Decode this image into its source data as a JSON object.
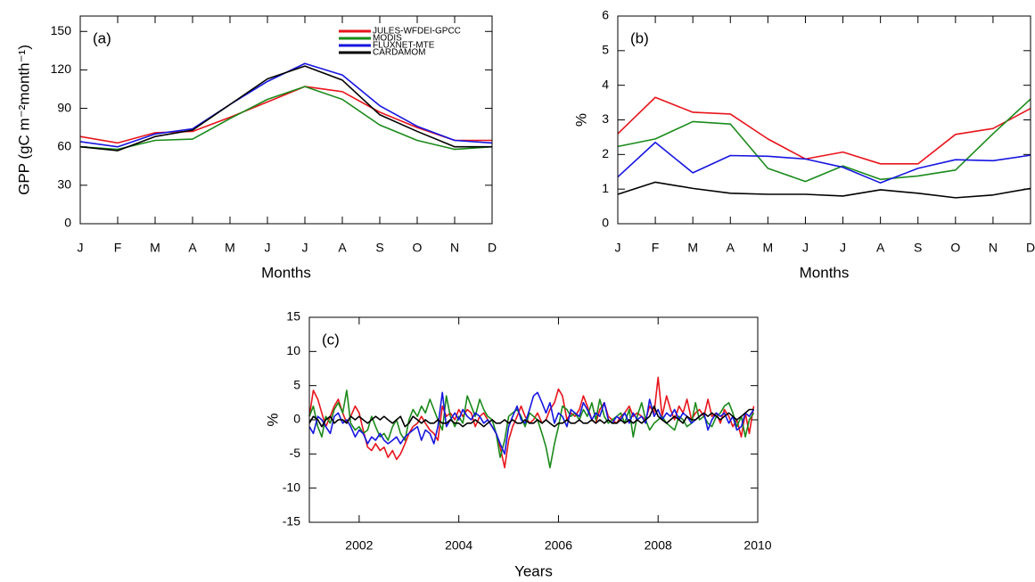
{
  "chart_data": [
    {
      "type": "line",
      "annotation": "(a)",
      "xlabel": "Months",
      "ylabel": "GPP (gC m⁻²month⁻¹)",
      "categories": [
        "J",
        "F",
        "M",
        "A",
        "M",
        "J",
        "J",
        "A",
        "S",
        "O",
        "N",
        "D"
      ],
      "ylim": [
        0,
        162
      ],
      "yticks": [
        0,
        30,
        60,
        90,
        120,
        150
      ],
      "legend": "upper right",
      "series": [
        {
          "name": "JULES-WFDEI-GPCC",
          "color": "#e8141b",
          "values": [
            68,
            63,
            71,
            72,
            83,
            95,
            107,
            103,
            87,
            75,
            65,
            65
          ]
        },
        {
          "name": "MODIS",
          "color": "#1a8a1a",
          "values": [
            60,
            58,
            65,
            66,
            82,
            97,
            107,
            97,
            77,
            65,
            58,
            60
          ]
        },
        {
          "name": "FLUXNET-MTE",
          "color": "#1515e0",
          "values": [
            64,
            60,
            70,
            74,
            93,
            111,
            125,
            116,
            92,
            76,
            65,
            63
          ]
        },
        {
          "name": "CARDAMOM",
          "color": "#000000",
          "values": [
            60,
            57,
            68,
            73,
            93,
            113,
            123,
            112,
            85,
            72,
            60,
            60
          ]
        }
      ]
    },
    {
      "type": "line",
      "annotation": "(b)",
      "xlabel": "Months",
      "ylabel": "%",
      "categories": [
        "J",
        "F",
        "M",
        "A",
        "M",
        "J",
        "J",
        "A",
        "S",
        "O",
        "N",
        "D"
      ],
      "ylim": [
        0,
        6
      ],
      "yticks": [
        0,
        1,
        2,
        3,
        4,
        5,
        6
      ],
      "series": [
        {
          "color": "#e8141b",
          "values": [
            2.6,
            3.65,
            3.22,
            3.17,
            2.45,
            1.87,
            2.07,
            1.73,
            1.73,
            2.58,
            2.75,
            3.33
          ]
        },
        {
          "color": "#1a8a1a",
          "values": [
            2.23,
            2.45,
            2.95,
            2.88,
            1.6,
            1.22,
            1.67,
            1.28,
            1.38,
            1.55,
            2.6,
            3.6
          ]
        },
        {
          "color": "#1515e0",
          "values": [
            1.35,
            2.35,
            1.47,
            1.97,
            1.95,
            1.87,
            1.63,
            1.18,
            1.6,
            1.85,
            1.82,
            1.98
          ]
        },
        {
          "color": "#000000",
          "values": [
            0.85,
            1.2,
            1.02,
            0.88,
            0.85,
            0.85,
            0.8,
            0.98,
            0.88,
            0.75,
            0.83,
            1.02
          ]
        }
      ]
    },
    {
      "type": "line",
      "annotation": "(c)",
      "xlabel": "Years",
      "ylabel": "%",
      "x": [
        2001,
        2001.08,
        2001.17,
        2001.25,
        2001.33,
        2001.42,
        2001.5,
        2001.58,
        2001.67,
        2001.75,
        2001.83,
        2001.92,
        2002,
        2002.08,
        2002.17,
        2002.25,
        2002.33,
        2002.42,
        2002.5,
        2002.58,
        2002.67,
        2002.75,
        2002.83,
        2002.92,
        2003,
        2003.08,
        2003.17,
        2003.25,
        2003.33,
        2003.42,
        2003.5,
        2003.58,
        2003.67,
        2003.75,
        2003.83,
        2003.92,
        2004,
        2004.08,
        2004.17,
        2004.25,
        2004.33,
        2004.42,
        2004.5,
        2004.58,
        2004.67,
        2004.75,
        2004.83,
        2004.92,
        2005,
        2005.08,
        2005.17,
        2005.25,
        2005.33,
        2005.42,
        2005.5,
        2005.58,
        2005.67,
        2005.75,
        2005.83,
        2005.92,
        2006,
        2006.08,
        2006.17,
        2006.25,
        2006.33,
        2006.42,
        2006.5,
        2006.58,
        2006.67,
        2006.75,
        2006.83,
        2006.92,
        2007,
        2007.08,
        2007.17,
        2007.25,
        2007.33,
        2007.42,
        2007.5,
        2007.58,
        2007.67,
        2007.75,
        2007.83,
        2007.92,
        2008,
        2008.08,
        2008.17,
        2008.25,
        2008.33,
        2008.42,
        2008.5,
        2008.58,
        2008.67,
        2008.75,
        2008.83,
        2008.92,
        2009,
        2009.08,
        2009.17,
        2009.25,
        2009.33,
        2009.42,
        2009.5,
        2009.58,
        2009.67,
        2009.75,
        2009.83,
        2009.92
      ],
      "xlim": [
        2001,
        2010
      ],
      "xticks": [
        2002,
        2004,
        2006,
        2008,
        2010
      ],
      "ylim": [
        -15,
        15
      ],
      "yticks": [
        -15,
        -10,
        -5,
        0,
        5,
        10,
        15
      ],
      "series": [
        {
          "color": "#e8141b",
          "values": [
            0.5,
            4.3,
            3.0,
            1.0,
            -1.0,
            0.5,
            2.0,
            3.0,
            1.0,
            -0.5,
            0.5,
            2.0,
            1.0,
            -1.5,
            -4.0,
            -4.5,
            -3.5,
            -4.5,
            -4.0,
            -5.5,
            -4.5,
            -5.8,
            -5.0,
            -3.5,
            -2.0,
            -1.0,
            -0.5,
            0.5,
            -0.5,
            -1.5,
            -2.0,
            -3.0,
            2.0,
            0.5,
            1.0,
            0.0,
            1.5,
            0.5,
            1.5,
            1.0,
            -1.0,
            0.5,
            1.0,
            0.0,
            -1.0,
            -2.0,
            -4.0,
            -7.0,
            -3.0,
            -1.0,
            0.5,
            2.0,
            0.5,
            -0.5,
            0.0,
            1.0,
            -0.5,
            0.0,
            1.5,
            2.5,
            4.5,
            3.5,
            0.0,
            1.0,
            0.5,
            1.5,
            3.5,
            2.0,
            0.0,
            -0.5,
            1.5,
            2.5,
            0.5,
            0.0,
            -0.5,
            0.5,
            1.0,
            2.0,
            0.5,
            1.0,
            0.5,
            0.0,
            2.0,
            1.0,
            6.2,
            0.5,
            3.5,
            1.5,
            0.0,
            2.0,
            1.0,
            3.0,
            0.0,
            1.0,
            1.5,
            0.5,
            3.0,
            0.5,
            1.0,
            -0.5,
            1.5,
            0.5,
            -1.0,
            0.0,
            -2.5,
            1.0,
            -2.0,
            2.0
          ]
        },
        {
          "color": "#1a8a1a",
          "values": [
            0.5,
            2.0,
            -1.0,
            -2.5,
            0.5,
            -0.5,
            1.5,
            2.5,
            1.0,
            4.3,
            -0.5,
            -1.5,
            -1.0,
            -2.0,
            -1.5,
            0.5,
            -1.0,
            -2.5,
            -2.0,
            -3.0,
            -1.0,
            0.0,
            -2.0,
            -3.0,
            0.0,
            1.5,
            0.5,
            2.0,
            1.0,
            3.0,
            1.5,
            0.0,
            -1.5,
            3.5,
            0.5,
            -1.0,
            0.5,
            -0.5,
            3.5,
            2.0,
            0.5,
            3.0,
            1.5,
            0.5,
            0.0,
            -2.0,
            -5.5,
            -3.0,
            0.5,
            1.0,
            1.5,
            0.5,
            -1.0,
            1.0,
            0.5,
            0.0,
            -2.0,
            -4.0,
            -7.0,
            -3.5,
            -1.0,
            2.0,
            1.5,
            0.5,
            1.0,
            0.0,
            1.5,
            0.5,
            2.5,
            0.0,
            3.0,
            0.5,
            -0.5,
            0.0,
            0.5,
            1.0,
            -0.5,
            1.5,
            -2.5,
            0.5,
            2.5,
            0.0,
            -1.5,
            -0.5,
            0.0,
            0.5,
            -0.5,
            -1.0,
            -1.5,
            0.5,
            0.0,
            -1.0,
            -0.5,
            2.5,
            0.0,
            0.5,
            -0.5,
            -1.0,
            0.5,
            1.0,
            2.0,
            2.5,
            1.0,
            -1.0,
            0.5,
            -2.5,
            0.0,
            1.0
          ]
        },
        {
          "color": "#1515e0",
          "values": [
            -1.0,
            -2.0,
            0.5,
            0.0,
            -1.0,
            -2.0,
            0.5,
            1.0,
            -0.5,
            0.0,
            -1.0,
            -2.5,
            -1.5,
            -2.0,
            -3.5,
            -2.5,
            -3.0,
            -2.0,
            -3.0,
            -3.5,
            -3.0,
            -2.5,
            -3.5,
            -2.5,
            -2.0,
            -1.5,
            -1.0,
            -3.0,
            -1.5,
            -2.0,
            -3.5,
            -1.0,
            4.0,
            -1.0,
            0.0,
            1.0,
            0.0,
            1.5,
            0.5,
            0.0,
            1.0,
            0.5,
            -0.5,
            0.0,
            -1.0,
            -2.0,
            -3.5,
            -5.0,
            -1.0,
            0.5,
            2.0,
            0.0,
            -0.5,
            1.5,
            3.5,
            4.0,
            2.5,
            1.0,
            2.5,
            -0.5,
            1.0,
            0.5,
            -1.0,
            1.5,
            1.0,
            0.5,
            2.5,
            1.5,
            0.0,
            1.0,
            0.5,
            2.5,
            0.0,
            -0.5,
            0.5,
            0.0,
            1.0,
            -0.5,
            1.0,
            0.0,
            0.5,
            -0.5,
            3.0,
            0.5,
            1.5,
            0.0,
            1.0,
            0.5,
            1.5,
            0.0,
            1.0,
            0.5,
            -0.5,
            0.0,
            0.5,
            1.0,
            -1.5,
            0.0,
            1.0,
            0.5,
            1.0,
            -0.5,
            0.5,
            -1.5,
            -1.0,
            1.0,
            0.5,
            1.5
          ]
        },
        {
          "color": "#000000",
          "values": [
            -0.5,
            0.5,
            0.0,
            -1.0,
            0.0,
            0.5,
            -0.5,
            0.0,
            0.0,
            -0.5,
            0.5,
            0.0,
            0.5,
            0.0,
            -0.5,
            0.0,
            0.5,
            0.0,
            0.5,
            0.0,
            -0.5,
            0.0,
            0.5,
            -1.0,
            -0.5,
            0.5,
            0.0,
            -0.5,
            0.0,
            -0.5,
            -0.5,
            0.0,
            -0.5,
            -0.5,
            0.0,
            -0.5,
            -0.5,
            -1.0,
            -0.5,
            -0.5,
            0.0,
            -0.5,
            -1.0,
            -0.5,
            0.0,
            -0.5,
            -0.5,
            0.0,
            -0.5,
            0.0,
            -0.5,
            -0.5,
            0.0,
            -0.5,
            -0.5,
            0.0,
            -0.5,
            0.0,
            -0.5,
            -1.0,
            -0.5,
            -0.5,
            0.0,
            -0.5,
            -0.5,
            0.0,
            -0.5,
            -0.5,
            0.0,
            -0.5,
            0.0,
            -0.5,
            0.0,
            -0.5,
            -0.5,
            0.0,
            -0.5,
            0.0,
            -0.5,
            0.0,
            -0.5,
            0.0,
            0.5,
            2.0,
            0.5,
            0.0,
            -0.5,
            0.0,
            0.5,
            0.0,
            -0.5,
            0.5,
            0.0,
            0.0,
            0.5,
            1.0,
            0.5,
            1.0,
            0.5,
            0.0,
            0.5,
            1.0,
            0.5,
            0.0,
            0.5,
            1.0,
            1.5,
            1.5
          ]
        }
      ]
    }
  ]
}
